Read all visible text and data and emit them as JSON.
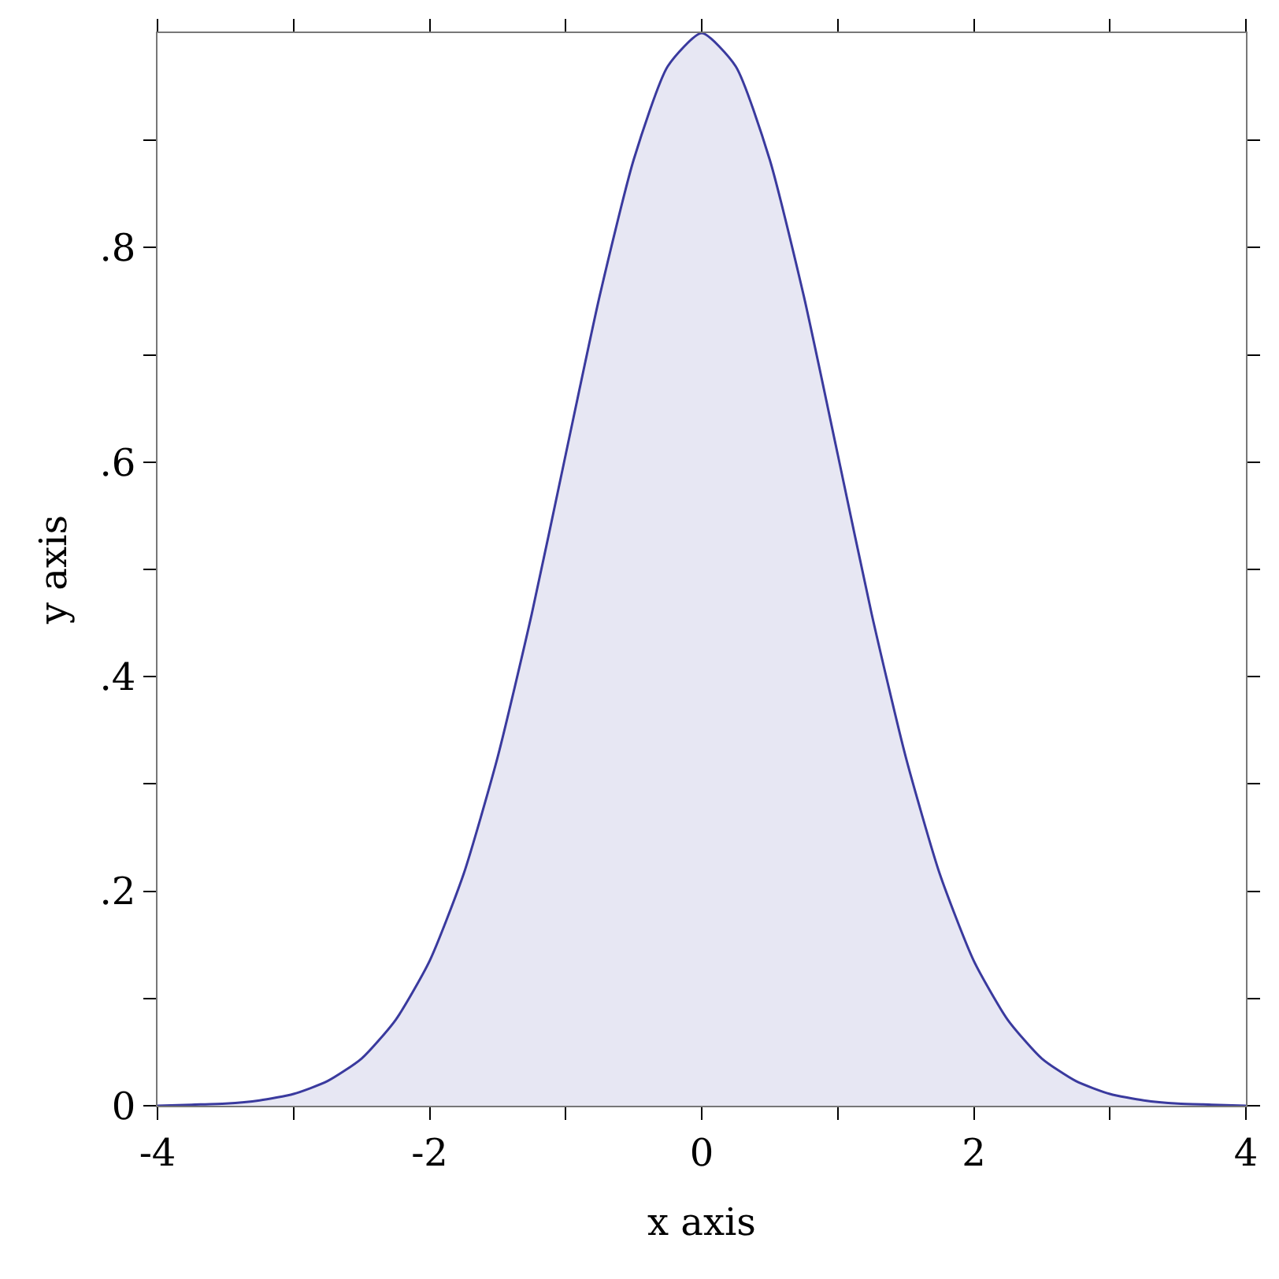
{
  "chart_data": {
    "type": "area",
    "xlabel": "x axis",
    "ylabel": "y axis",
    "x": [
      -4,
      -3.75,
      -3.5,
      -3.25,
      -3,
      -2.75,
      -2.5,
      -2.25,
      -2,
      -1.75,
      -1.5,
      -1.25,
      -1,
      -0.75,
      -0.5,
      -0.25,
      0,
      0.25,
      0.5,
      0.75,
      1,
      1.25,
      1.5,
      1.75,
      2,
      2.25,
      2.5,
      2.75,
      3,
      3.25,
      3.5,
      3.75,
      4
    ],
    "series": [
      {
        "color": "#3a3a9e",
        "values": [
          0,
          0.001,
          0.002,
          0.005,
          0.011,
          0.023,
          0.044,
          0.08,
          0.135,
          0.216,
          0.325,
          0.458,
          0.607,
          0.755,
          0.882,
          0.969,
          1,
          0.969,
          0.882,
          0.755,
          0.607,
          0.458,
          0.325,
          0.216,
          0.135,
          0.08,
          0.044,
          0.023,
          0.011,
          0.005,
          0.002,
          0.001,
          0
        ]
      }
    ],
    "xlim": [
      -4,
      4
    ],
    "xticks": [
      -4,
      {
        "value": -3,
        "label": null
      },
      -2,
      {
        "value": -1,
        "label": null
      },
      0,
      {
        "value": 1,
        "label": null
      },
      2,
      {
        "value": 3,
        "label": null
      },
      4
    ],
    "ylim": [
      0,
      1
    ],
    "yticks": [
      0,
      {
        "value": 0.1,
        "label": null
      },
      {
        "value": 0.2,
        "label": ".2"
      },
      {
        "value": 0.3,
        "label": null
      },
      {
        "value": 0.4,
        "label": ".4"
      },
      {
        "value": 0.5,
        "label": null
      },
      {
        "value": 0.6,
        "label": ".6"
      },
      {
        "value": 0.7,
        "label": null
      },
      {
        "value": 0.8,
        "label": ".8"
      },
      {
        "value": 0.9,
        "label": null
      }
    ],
    "grid": false
  }
}
